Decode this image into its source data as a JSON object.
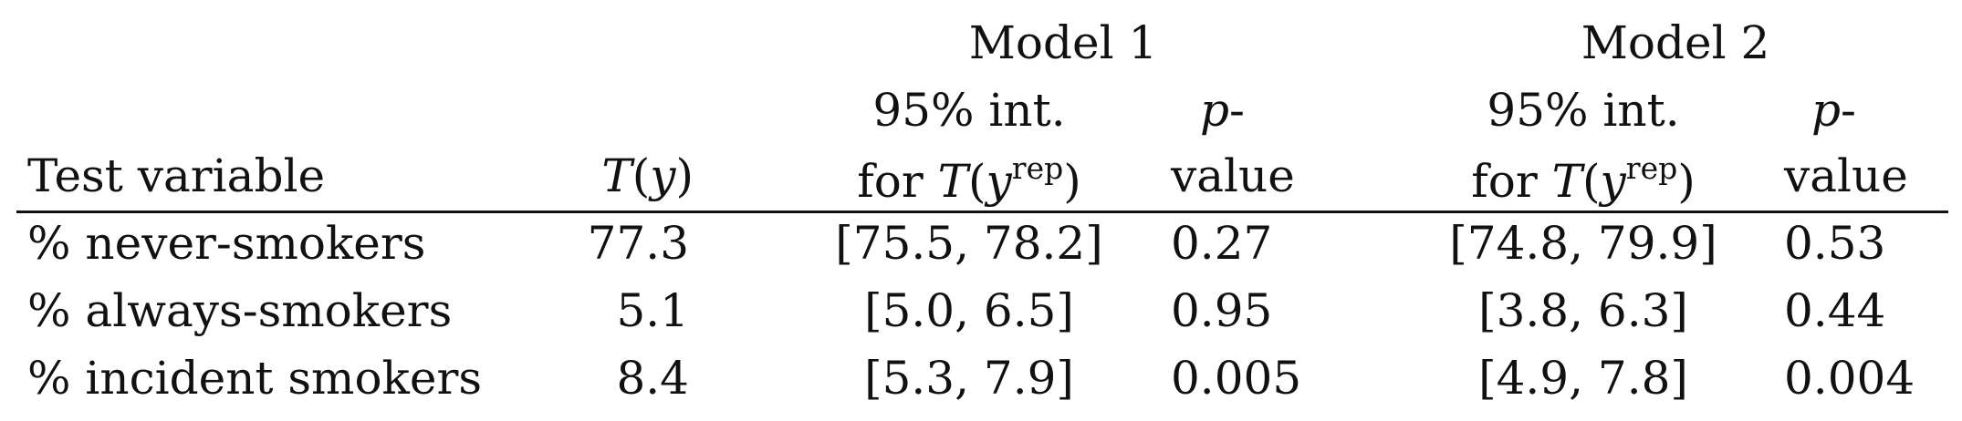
{
  "header": {
    "groups": [
      {
        "label": "Model 1"
      },
      {
        "label": "Model 2"
      }
    ],
    "columns": {
      "test_variable": "Test variable",
      "t_y": {
        "pre": "T",
        "open": "(",
        "var": "y",
        "close": ")"
      },
      "interval": {
        "line1": "95% int.",
        "line2_pre": "for ",
        "line2_T": "T",
        "line2_open": "(",
        "line2_var": "y",
        "line2_sup": "rep",
        "line2_close": ")"
      },
      "pvalue": {
        "line1_p": "p",
        "line1_dash": "-",
        "line2": "value"
      }
    }
  },
  "rows": [
    {
      "label": "% never-smokers",
      "t_y": "77.3",
      "m1_int": "[75.5, 78.2]",
      "m1_p": "0.27",
      "m2_int": "[74.8, 79.9]",
      "m2_p": "0.53"
    },
    {
      "label": "% always-smokers",
      "t_y": "5.1",
      "m1_int": "[5.0, 6.5]",
      "m1_p": "0.95",
      "m2_int": "[3.8, 6.3]",
      "m2_p": "0.44"
    },
    {
      "label": "% incident smokers",
      "t_y": "8.4",
      "m1_int": "[5.3, 7.9]",
      "m1_p": "0.005",
      "m2_int": "[4.9, 7.8]",
      "m2_p": "0.004"
    }
  ]
}
